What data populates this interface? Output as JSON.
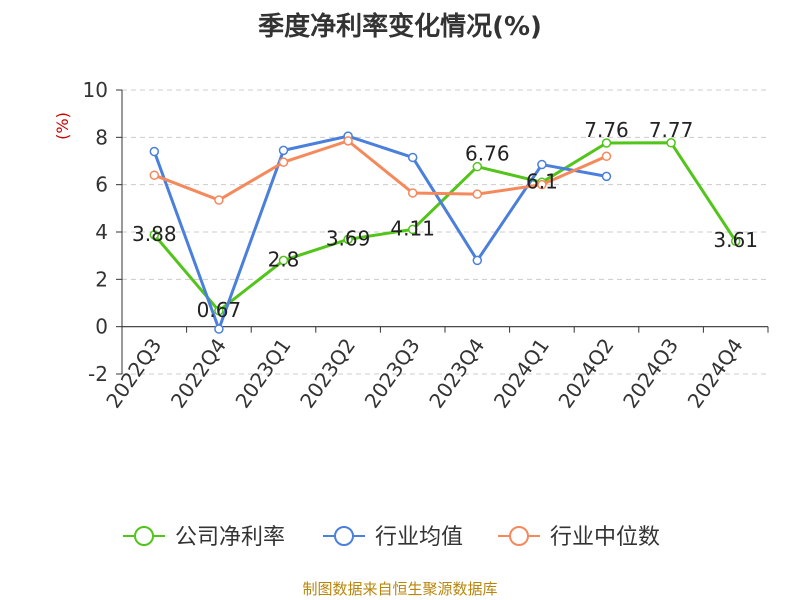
{
  "chart_data": {
    "type": "line",
    "title": "季度净利率变化情况(%)",
    "ylabel": "(%)",
    "xlabel": "",
    "ylim": [
      -2,
      10
    ],
    "yticks": [
      -2,
      0,
      2,
      4,
      6,
      8,
      10
    ],
    "grid": true,
    "legend_position": "bottom",
    "categories": [
      "2022Q3",
      "2022Q4",
      "2023Q1",
      "2023Q2",
      "2023Q3",
      "2023Q4",
      "2024Q1",
      "2024Q2",
      "2024Q3",
      "2024Q4"
    ],
    "series": [
      {
        "name": "公司净利率",
        "color": "#52c41a",
        "values": [
          3.88,
          0.67,
          2.8,
          3.69,
          4.11,
          6.76,
          6.1,
          7.76,
          7.77,
          3.61
        ],
        "labels": [
          "3.88",
          "0.67",
          "2.8",
          "3.69",
          "4.11",
          "6.76",
          "6.1",
          "7.76",
          "7.77",
          "3.61"
        ],
        "show_labels": true
      },
      {
        "name": "行业均值",
        "color": "#4a7fdc",
        "values": [
          7.4,
          -0.1,
          7.45,
          8.05,
          7.15,
          2.8,
          6.85,
          6.35,
          null,
          null
        ],
        "show_labels": false
      },
      {
        "name": "行业中位数",
        "color": "#f5895c",
        "values": [
          6.4,
          5.35,
          6.95,
          7.85,
          5.65,
          5.6,
          6.0,
          7.2,
          null,
          null
        ],
        "show_labels": false
      }
    ],
    "source": "制图数据来自恒生聚源数据库"
  }
}
